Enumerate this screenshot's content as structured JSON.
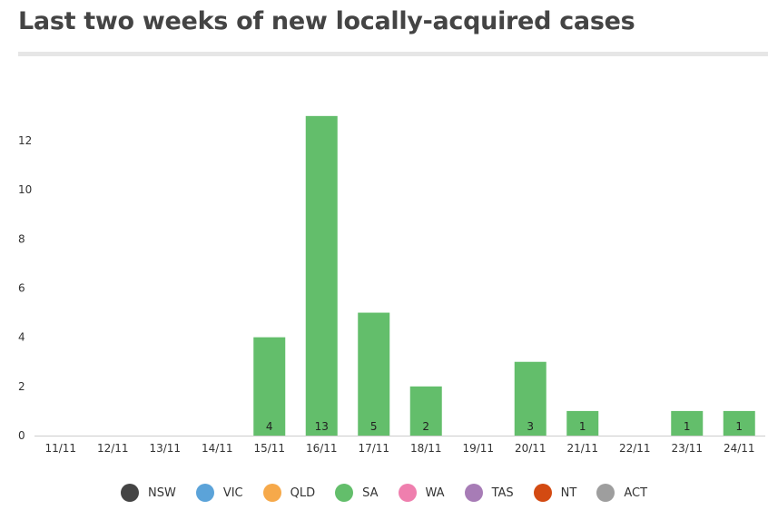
{
  "title": "Last two weeks of new locally-acquired cases",
  "chart_data": {
    "type": "bar",
    "categories": [
      "11/11",
      "12/11",
      "13/11",
      "14/11",
      "15/11",
      "16/11",
      "17/11",
      "18/11",
      "19/11",
      "20/11",
      "21/11",
      "22/11",
      "23/11",
      "24/11"
    ],
    "series": [
      {
        "name": "NSW",
        "color": "#444444",
        "values": [
          0,
          0,
          0,
          0,
          0,
          0,
          0,
          0,
          0,
          0,
          0,
          0,
          0,
          0
        ]
      },
      {
        "name": "VIC",
        "color": "#5ba3d9",
        "values": [
          0,
          0,
          0,
          0,
          0,
          0,
          0,
          0,
          0,
          0,
          0,
          0,
          0,
          0
        ]
      },
      {
        "name": "QLD",
        "color": "#f6a94a",
        "values": [
          0,
          0,
          0,
          0,
          0,
          0,
          0,
          0,
          0,
          0,
          0,
          0,
          0,
          0
        ]
      },
      {
        "name": "SA",
        "color": "#63be6b",
        "values": [
          0,
          0,
          0,
          0,
          4,
          13,
          5,
          2,
          0,
          3,
          1,
          0,
          1,
          1
        ]
      },
      {
        "name": "WA",
        "color": "#ef7fae",
        "values": [
          0,
          0,
          0,
          0,
          0,
          0,
          0,
          0,
          0,
          0,
          0,
          0,
          0,
          0
        ]
      },
      {
        "name": "TAS",
        "color": "#a77cb6",
        "values": [
          0,
          0,
          0,
          0,
          0,
          0,
          0,
          0,
          0,
          0,
          0,
          0,
          0,
          0
        ]
      },
      {
        "name": "NT",
        "color": "#d34a12",
        "values": [
          0,
          0,
          0,
          0,
          0,
          0,
          0,
          0,
          0,
          0,
          0,
          0,
          0,
          0
        ]
      },
      {
        "name": "ACT",
        "color": "#9e9e9e",
        "values": [
          0,
          0,
          0,
          0,
          0,
          0,
          0,
          0,
          0,
          0,
          0,
          0,
          0,
          0
        ]
      }
    ],
    "data_labels": [
      "",
      "",
      "",
      "",
      "4",
      "13",
      "5",
      "2",
      "",
      "3",
      "1",
      "",
      "1",
      "1"
    ],
    "yticks": [
      0,
      2,
      4,
      6,
      8,
      10,
      12
    ],
    "ylim": [
      0,
      13.4
    ],
    "xlabel": "",
    "ylabel": "",
    "grid": false,
    "legend_position": "bottom"
  }
}
